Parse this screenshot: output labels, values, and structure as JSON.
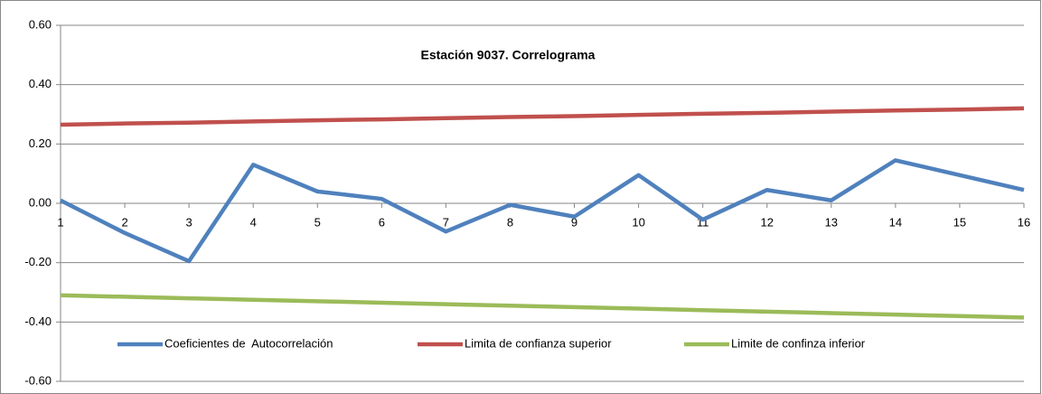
{
  "chart_data": {
    "type": "line",
    "title": "Estación 9037. Correlograma",
    "x": [
      1,
      2,
      3,
      4,
      5,
      6,
      7,
      8,
      9,
      10,
      11,
      12,
      13,
      14,
      15,
      16
    ],
    "xlim": [
      1,
      16
    ],
    "xticks": [
      1,
      2,
      3,
      4,
      5,
      6,
      7,
      8,
      9,
      10,
      11,
      12,
      13,
      14,
      15,
      16
    ],
    "ylim": [
      -0.6,
      0.6
    ],
    "yticks": [
      {
        "value": -0.6,
        "label": "-0.60"
      },
      {
        "value": -0.4,
        "label": "-0.40"
      },
      {
        "value": -0.2,
        "label": "-0.20"
      },
      {
        "value": 0,
        "label": "0.00"
      },
      {
        "value": 0.2,
        "label": "0.20"
      },
      {
        "value": 0.4,
        "label": "0.40"
      },
      {
        "value": 0.6,
        "label": "0.60"
      }
    ],
    "grid": true,
    "legend": "bottom",
    "series": [
      {
        "name": "Coeficientes de  Autocorrelación",
        "color": "#4f81bd",
        "values": [
          0.01,
          -0.1,
          -0.195,
          0.13,
          0.04,
          0.015,
          -0.095,
          -0.005,
          -0.045,
          0.095,
          -0.055,
          0.045,
          0.01,
          0.145,
          0.095,
          0.045
        ]
      },
      {
        "name": "Limita de confianza superior",
        "color": "#c0504d",
        "values": [
          0.265,
          0.269,
          0.272,
          0.276,
          0.28,
          0.283,
          0.287,
          0.291,
          0.294,
          0.298,
          0.302,
          0.305,
          0.309,
          0.313,
          0.316,
          0.32
        ]
      },
      {
        "name": "Limite de confinza inferior",
        "color": "#9bbb59",
        "values": [
          -0.31,
          -0.315,
          -0.32,
          -0.325,
          -0.33,
          -0.335,
          -0.34,
          -0.345,
          -0.35,
          -0.355,
          -0.36,
          -0.365,
          -0.37,
          -0.375,
          -0.38,
          -0.385
        ]
      }
    ]
  }
}
